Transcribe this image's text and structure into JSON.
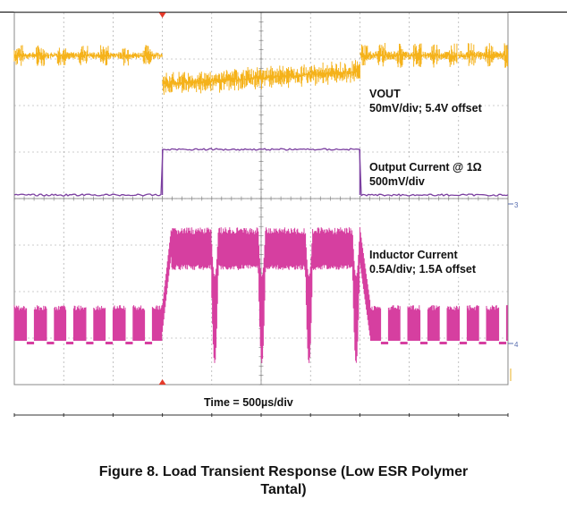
{
  "chart_data": {
    "type": "line",
    "title": "",
    "xlabel": "Time = 500µs/div",
    "divisions_x": 10,
    "divisions_y": 8,
    "grid": true,
    "series": [
      {
        "name": "VOUT",
        "scale": "50mV/div; 5.4V offset",
        "color": "#f5b21a",
        "description": "Switching ripple at steady level, dips at load step, returns after step ends",
        "values_div": [
          [
            0,
            0
          ],
          [
            3,
            0
          ],
          [
            3.0,
            -0.3
          ],
          [
            7.0,
            -0.1
          ],
          [
            7.0,
            0.0
          ],
          [
            10,
            0
          ]
        ]
      },
      {
        "name": "Output Current @ 1Ω",
        "scale": "500mV/div",
        "color": "#7b3fa0",
        "description": "Step load: low before 3 div, high between 3 and 7 div, low after",
        "values_div": [
          [
            0,
            0
          ],
          [
            3,
            0
          ],
          [
            3,
            0.95
          ],
          [
            7,
            0.95
          ],
          [
            7,
            0
          ],
          [
            10,
            0
          ]
        ]
      },
      {
        "name": "Inductor Current",
        "scale": "0.5A/div; 1.5A offset",
        "color": "#d63fa0",
        "description": "Burst switching at light load, continuous high current with dips during load step",
        "values_div": [
          [
            0,
            0
          ],
          [
            3,
            0
          ],
          [
            3.1,
            1.5
          ],
          [
            7,
            1.5
          ],
          [
            7.1,
            0
          ],
          [
            10,
            0
          ]
        ]
      }
    ]
  },
  "labels": {
    "vout_name": "VOUT",
    "vout_scale": "50mV/div; 5.4V offset",
    "iout_name": "Output Current @ 1Ω",
    "iout_scale": "500mV/div",
    "il_name": "Inductor Current",
    "il_scale": "0.5A/div; 1.5A offset",
    "time": "Time = 500µs/div",
    "channel_3": "3",
    "channel_4": "4"
  },
  "caption": {
    "line1": "Figure 8. Load Transient Response (Low ESR Polymer",
    "line2": "Tantal)"
  },
  "colors": {
    "vout": "#f5b21a",
    "iout": "#7b3fa0",
    "il": "#d63fa0",
    "grid": "#9a9a9a",
    "marker": "#e43a2a"
  }
}
